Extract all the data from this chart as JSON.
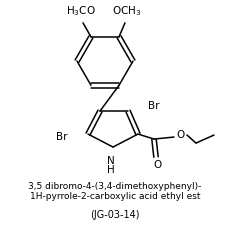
{
  "title_line1": "3,5 dibromo-4-(3,4-dimethoxyphenyl)-",
  "title_line2": "1H-pyrrole-2-carboxylic acid ethyl est",
  "subtitle": "(JG-03-14)",
  "bg_color": "#ffffff",
  "line_color": "#000000",
  "font_size_label": 7.0,
  "font_size_title": 6.5,
  "font_size_subtitle": 7.0
}
